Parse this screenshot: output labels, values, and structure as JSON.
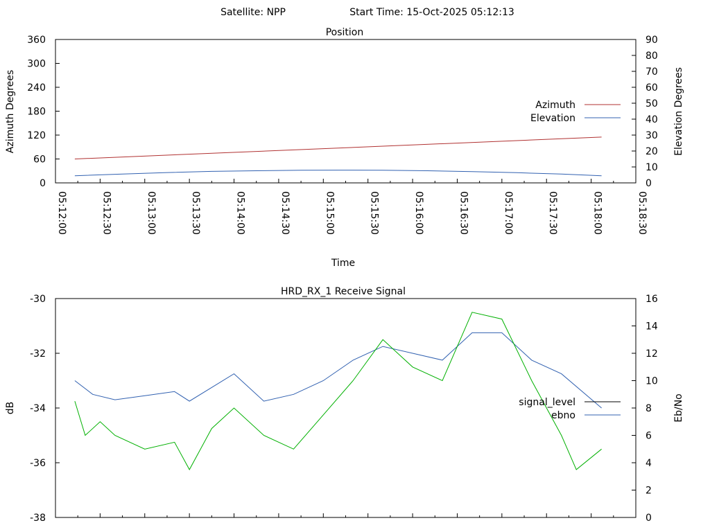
{
  "header": {
    "satellite": "Satellite: NPP",
    "start_time": "Start Time: 15-Oct-2025 05:12:13"
  },
  "chart_data": [
    {
      "type": "line",
      "title": "Position",
      "xlabel": "Time",
      "ylabel_left": "Azimuth Degrees",
      "ylabel_right": "Elevation Degrees",
      "x_ticks": [
        "05:12:00",
        "05:12:30",
        "05:13:00",
        "05:13:30",
        "05:14:00",
        "05:14:30",
        "05:15:00",
        "05:15:30",
        "05:16:00",
        "05:16:30",
        "05:17:00",
        "05:17:30",
        "05:18:00",
        "05:18:30"
      ],
      "ylim_left": [
        0,
        360
      ],
      "yticks_left": [
        0,
        60,
        120,
        180,
        240,
        300,
        360
      ],
      "ylim_right": [
        0,
        90
      ],
      "yticks_right": [
        0,
        10,
        20,
        30,
        40,
        50,
        60,
        70,
        80,
        90
      ],
      "legend_position": "right",
      "series": [
        {
          "name": "Azimuth",
          "axis": "left",
          "color": "#b03030",
          "x": [
            "05:12:13",
            "05:18:07"
          ],
          "values": [
            60,
            115
          ]
        },
        {
          "name": "Elevation",
          "axis": "right",
          "color": "#3060b0",
          "x": [
            "05:12:13",
            "05:12:45",
            "05:13:15",
            "05:13:45",
            "05:14:15",
            "05:14:45",
            "05:15:10",
            "05:15:40",
            "05:16:10",
            "05:16:40",
            "05:17:10",
            "05:17:40",
            "05:18:07"
          ],
          "values": [
            4.5,
            5.5,
            6.5,
            7.2,
            7.6,
            7.9,
            8.0,
            7.9,
            7.6,
            7.1,
            6.4,
            5.5,
            4.5
          ]
        }
      ]
    },
    {
      "type": "line",
      "title": "HRD_RX_1 Receive Signal",
      "ylabel_left": "dB",
      "ylabel_right": "Eb/No",
      "ylim_left": [
        -38,
        -30
      ],
      "yticks_left": [
        -38,
        -36,
        -34,
        -32,
        -30
      ],
      "ylim_right": [
        0,
        16
      ],
      "yticks_right": [
        0,
        2,
        4,
        6,
        8,
        10,
        12,
        14,
        16
      ],
      "legend_position": "right",
      "series": [
        {
          "name": "signal_level",
          "axis": "left",
          "color": "#000000",
          "values": []
        },
        {
          "name": "ebno",
          "axis": "right",
          "color": "#3060b0",
          "x": [
            "05:12:13",
            "05:12:25",
            "05:12:40",
            "05:13:00",
            "05:13:20",
            "05:13:30",
            "05:14:00",
            "05:14:20",
            "05:14:40",
            "05:15:00",
            "05:15:20",
            "05:15:40",
            "05:16:00",
            "05:16:20",
            "05:16:40",
            "05:17:00",
            "05:17:20",
            "05:17:40",
            "05:18:07"
          ],
          "values": [
            10.0,
            9.0,
            8.6,
            8.9,
            9.2,
            8.5,
            10.5,
            8.5,
            9.0,
            10.0,
            11.5,
            12.5,
            12.0,
            11.5,
            13.5,
            13.5,
            11.5,
            10.5,
            8.0
          ]
        },
        {
          "name": "",
          "axis": "right",
          "color": "#00b000",
          "x": [
            "05:12:13",
            "05:12:20",
            "05:12:30",
            "05:12:40",
            "05:13:00",
            "05:13:20",
            "05:13:30",
            "05:13:45",
            "05:14:00",
            "05:14:20",
            "05:14:40",
            "05:15:00",
            "05:15:20",
            "05:15:40",
            "05:16:00",
            "05:16:20",
            "05:16:40",
            "05:17:00",
            "05:17:20",
            "05:17:40",
            "05:17:50",
            "05:18:07"
          ],
          "values": [
            8.5,
            6.0,
            7.0,
            6.0,
            5.0,
            5.5,
            3.5,
            6.5,
            8.0,
            6.0,
            5.0,
            7.5,
            10.0,
            13.0,
            11.0,
            10.0,
            15.0,
            14.5,
            10.0,
            6.0,
            3.5,
            5.0
          ]
        }
      ]
    }
  ]
}
